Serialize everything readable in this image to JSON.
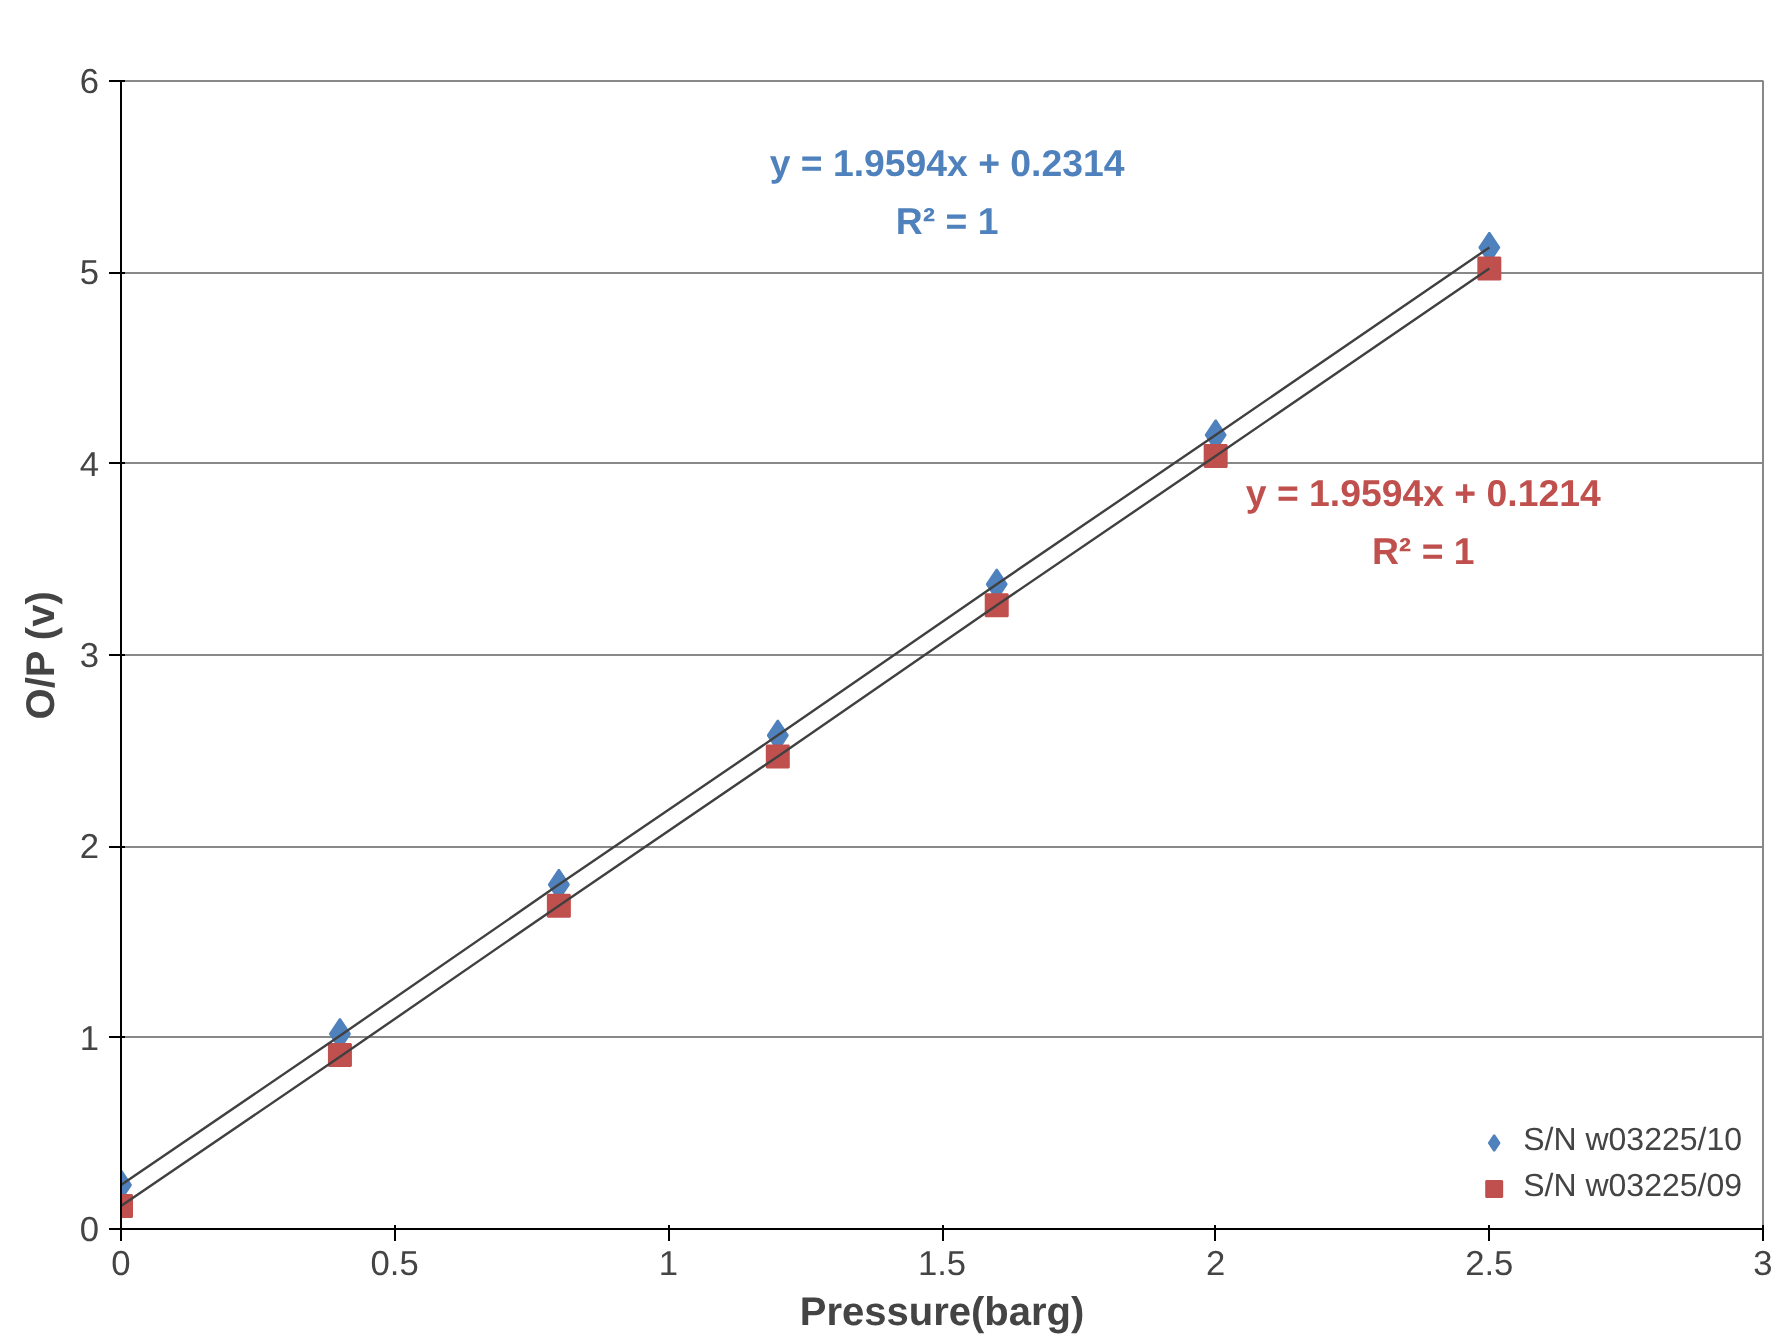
{
  "chart_data": {
    "type": "scatter",
    "xlabel": "Pressure(barg)",
    "ylabel": "O/P (v)",
    "xlim": [
      0,
      3
    ],
    "xticks": [
      0,
      0.5,
      1,
      1.5,
      2,
      2.5,
      3
    ],
    "ylim": [
      0,
      6
    ],
    "yticks": [
      0,
      1,
      2,
      3,
      4,
      5,
      6
    ],
    "grid": "y",
    "legend": "bottom right",
    "x": [
      0,
      0.4,
      0.8,
      1.2,
      1.6,
      2.0,
      2.5
    ],
    "series": [
      {
        "name": "S/N w03225/10",
        "color": "#4f81bd",
        "marker": "diamond",
        "values": [
          0.23,
          1.02,
          1.8,
          2.58,
          3.37,
          4.15,
          5.13
        ]
      },
      {
        "name": "S/N w03225/09",
        "color": "#c0504d",
        "marker": "square",
        "values": [
          0.12,
          0.91,
          1.69,
          2.47,
          3.26,
          4.04,
          5.02
        ]
      },
      {
        "type": "line",
        "color": "#404040",
        "values": [
          0.23,
          1.01,
          1.8,
          2.58,
          3.37,
          4.15,
          5.13
        ]
      },
      {
        "type": "line",
        "color": "#404040",
        "values": [
          0.12,
          0.9,
          1.69,
          2.47,
          3.26,
          4.04,
          5.02
        ]
      }
    ],
    "annotations": [
      "y = 1.9594x + 0.2314",
      "R² = 1",
      "y = 1.9594x + 0.1214",
      "R² = 1"
    ]
  }
}
